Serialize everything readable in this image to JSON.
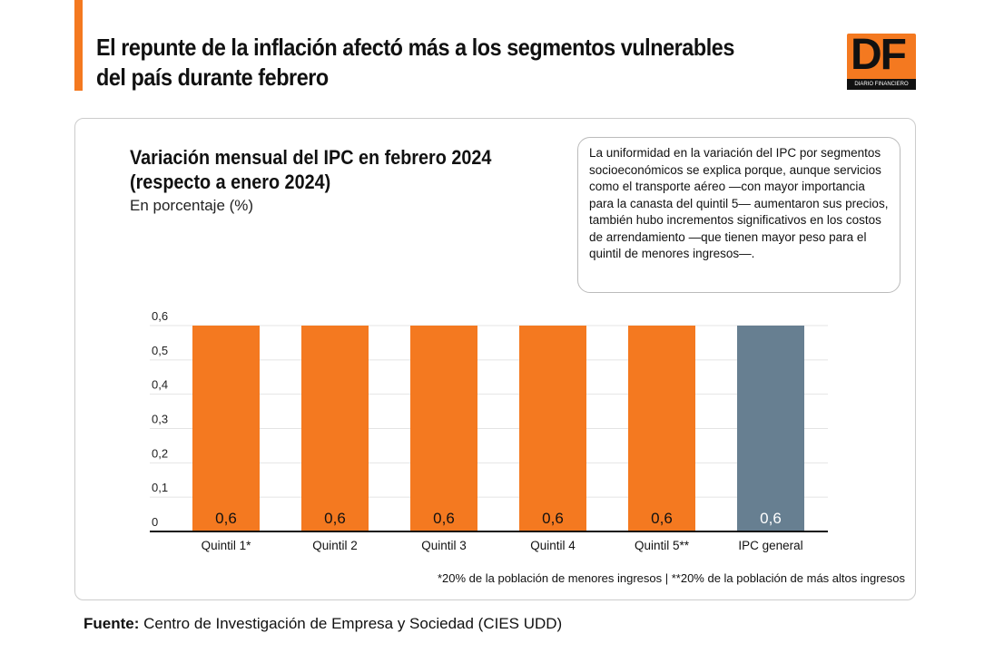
{
  "header": {
    "title_line1": "El repunte de la inflación afectó más a los segmentos vulnerables",
    "title_line2": "del país durante febrero",
    "logo_text": "DF",
    "logo_subtext": "DIARIO FINANCIERO"
  },
  "note": "La uniformidad en la variación del IPC por segmentos socioeconómicos se explica porque, aunque servicios como el transporte aéreo —con mayor importancia para la canasta del quintil 5— aumentaron sus precios, también hubo incrementos significativos en los costos de arrendamiento —que tienen mayor peso para el quintil de menores ingresos—.",
  "footnote": "*20% de la población de menores ingresos | **20% de la población de más altos ingresos",
  "source_label": "Fuente:",
  "source": " Centro de Investigación de Empresa y Sociedad (CIES UDD)",
  "chart_data": {
    "type": "bar",
    "title_line1": "Variación mensual del IPC en febrero 2024",
    "title_line2": "(respecto a enero 2024)",
    "subtitle": "En porcentaje (%)",
    "categories": [
      "Quintil 1*",
      "Quintil 2",
      "Quintil 3",
      "Quintil 4",
      "Quintil 5**",
      "IPC general"
    ],
    "values": [
      0.6,
      0.6,
      0.6,
      0.6,
      0.6,
      0.6
    ],
    "value_labels": [
      "0,6",
      "0,6",
      "0,6",
      "0,6",
      "0,6",
      "0,6"
    ],
    "colors": [
      "#f47920",
      "#f47920",
      "#f47920",
      "#f47920",
      "#f47920",
      "#677f91"
    ],
    "ylim": [
      0,
      0.6
    ],
    "yticks": [
      "0",
      "0,1",
      "0,2",
      "0,3",
      "0,4",
      "0,5",
      "0,6"
    ],
    "grid": true
  }
}
